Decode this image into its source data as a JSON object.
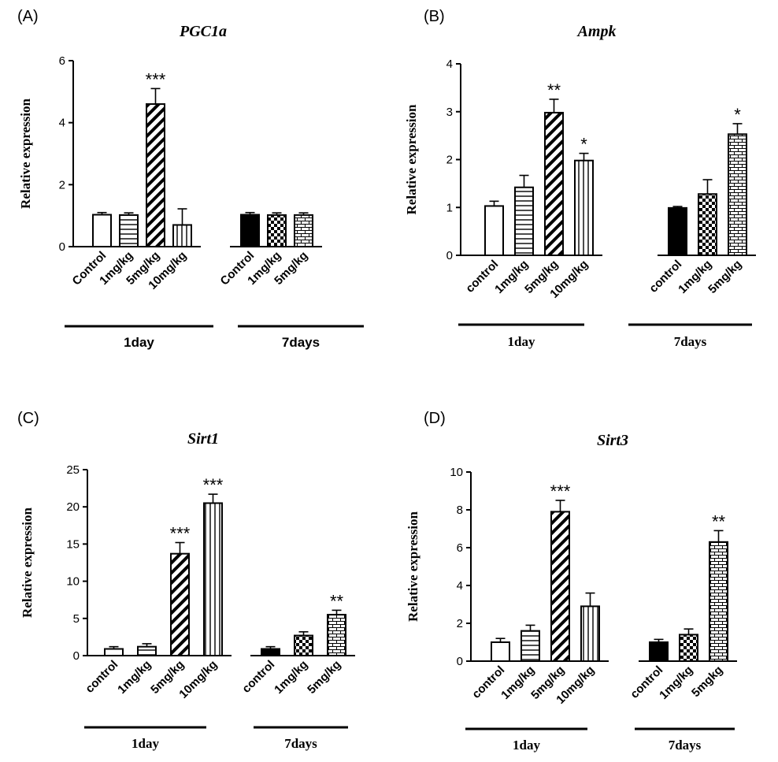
{
  "chart_data": [
    {
      "panel": "(A)",
      "type": "bar",
      "title": "PGC1a",
      "ylabel": "Relative expression",
      "ylim": [
        0,
        6
      ],
      "yticks": [
        0,
        2,
        4,
        6
      ],
      "groups": [
        {
          "label": "1day",
          "bars": [
            {
              "category": "Control",
              "value": 1.03,
              "error": 0.07,
              "pattern": "open",
              "sig": ""
            },
            {
              "category": "1mg/kg",
              "value": 1.02,
              "error": 0.07,
              "pattern": "hstripe",
              "sig": ""
            },
            {
              "category": "5mg/kg",
              "value": 4.6,
              "error": 0.5,
              "pattern": "diag",
              "sig": "***"
            },
            {
              "category": "10mg/kg",
              "value": 0.7,
              "error": 0.52,
              "pattern": "vstripe",
              "sig": ""
            }
          ]
        },
        {
          "label": "7days",
          "bars": [
            {
              "category": "Control",
              "value": 1.03,
              "error": 0.07,
              "pattern": "solid",
              "sig": ""
            },
            {
              "category": "1mg/kg",
              "value": 1.02,
              "error": 0.07,
              "pattern": "checker",
              "sig": ""
            },
            {
              "category": "5mg/kg",
              "value": 1.02,
              "error": 0.07,
              "pattern": "brick",
              "sig": ""
            }
          ]
        }
      ]
    },
    {
      "panel": "(B)",
      "type": "bar",
      "title": "Ampk",
      "ylabel": "Relative expression",
      "ylim": [
        0,
        4
      ],
      "yticks": [
        0,
        1,
        2,
        3,
        4
      ],
      "groups": [
        {
          "label": "1day",
          "bars": [
            {
              "category": "control",
              "value": 1.03,
              "error": 0.1,
              "pattern": "open",
              "sig": ""
            },
            {
              "category": "1mg/kg",
              "value": 1.42,
              "error": 0.25,
              "pattern": "hstripe",
              "sig": ""
            },
            {
              "category": "5mg/kg",
              "value": 2.98,
              "error": 0.28,
              "pattern": "diag",
              "sig": "**"
            },
            {
              "category": "10mg/kg",
              "value": 1.98,
              "error": 0.15,
              "pattern": "vstripe",
              "sig": "*"
            }
          ]
        },
        {
          "label": "7days",
          "bars": [
            {
              "category": "control",
              "value": 0.99,
              "error": 0.03,
              "pattern": "solid",
              "sig": ""
            },
            {
              "category": "1mg/kg",
              "value": 1.28,
              "error": 0.3,
              "pattern": "checker",
              "sig": ""
            },
            {
              "category": "5mg/kg",
              "value": 2.53,
              "error": 0.22,
              "pattern": "brick",
              "sig": "*"
            }
          ]
        }
      ]
    },
    {
      "panel": "(C)",
      "type": "bar",
      "title": "Sirt1",
      "ylabel": "Relative expression",
      "ylim": [
        0,
        25
      ],
      "yticks": [
        0,
        5,
        10,
        15,
        20,
        25
      ],
      "groups": [
        {
          "label": "1day",
          "bars": [
            {
              "category": "control",
              "value": 0.9,
              "error": 0.3,
              "pattern": "open",
              "sig": ""
            },
            {
              "category": "1mg/kg",
              "value": 1.2,
              "error": 0.4,
              "pattern": "hstripe",
              "sig": ""
            },
            {
              "category": "5mg/kg",
              "value": 13.7,
              "error": 1.5,
              "pattern": "diag",
              "sig": "***"
            },
            {
              "category": "10mg/kg",
              "value": 20.5,
              "error": 1.2,
              "pattern": "vstripe",
              "sig": "***"
            }
          ]
        },
        {
          "label": "7days",
          "bars": [
            {
              "category": "control",
              "value": 0.9,
              "error": 0.3,
              "pattern": "solid",
              "sig": ""
            },
            {
              "category": "1mg/kg",
              "value": 2.7,
              "error": 0.5,
              "pattern": "checker",
              "sig": ""
            },
            {
              "category": "5mg/kg",
              "value": 5.5,
              "error": 0.6,
              "pattern": "brick",
              "sig": "**"
            }
          ]
        }
      ]
    },
    {
      "panel": "(D)",
      "type": "bar",
      "title": "Sirt3",
      "ylabel": "Relative expression",
      "ylim": [
        0,
        10
      ],
      "yticks": [
        0,
        2,
        4,
        6,
        8,
        10
      ],
      "groups": [
        {
          "label": "1day",
          "bars": [
            {
              "category": "control",
              "value": 1.0,
              "error": 0.2,
              "pattern": "open",
              "sig": ""
            },
            {
              "category": "1mg/kg",
              "value": 1.6,
              "error": 0.3,
              "pattern": "hstripe",
              "sig": ""
            },
            {
              "category": "5mg/kg",
              "value": 7.9,
              "error": 0.6,
              "pattern": "diag",
              "sig": "***"
            },
            {
              "category": "10mg/kg",
              "value": 2.9,
              "error": 0.7,
              "pattern": "vstripe",
              "sig": ""
            }
          ]
        },
        {
          "label": "7days",
          "bars": [
            {
              "category": "control",
              "value": 1.0,
              "error": 0.15,
              "pattern": "solid",
              "sig": ""
            },
            {
              "category": "1mg/kg",
              "value": 1.4,
              "error": 0.3,
              "pattern": "checker",
              "sig": ""
            },
            {
              "category": "5mgkg",
              "value": 6.3,
              "error": 0.6,
              "pattern": "brick",
              "sig": "**"
            }
          ]
        }
      ]
    }
  ]
}
